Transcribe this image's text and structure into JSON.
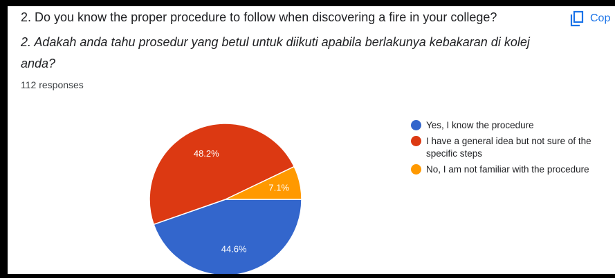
{
  "question": {
    "english": "2. Do you know the proper procedure to follow when discovering a fire in your college?",
    "malay": "2. Adakah anda tahu prosedur yang betul untuk diikuti apabila berlakunya kebakaran di kolej anda?",
    "responses": "112 responses"
  },
  "copy_button": {
    "label": "Cop",
    "icon": "copy-icon"
  },
  "colors": {
    "blue": "#3366cc",
    "red": "#dc3912",
    "orange": "#ff9900",
    "accent": "#1a73e8"
  },
  "chart_data": {
    "type": "pie",
    "categories": [
      "Yes, I know the procedure",
      "I have a general idea but not sure of the specific steps",
      "No, I am not familiar with the procedure"
    ],
    "values": [
      44.6,
      48.2,
      7.1
    ],
    "labels": [
      "44.6%",
      "48.2%",
      "7.1%"
    ],
    "colors": [
      "#3366cc",
      "#dc3912",
      "#ff9900"
    ],
    "legend_position": "right"
  }
}
